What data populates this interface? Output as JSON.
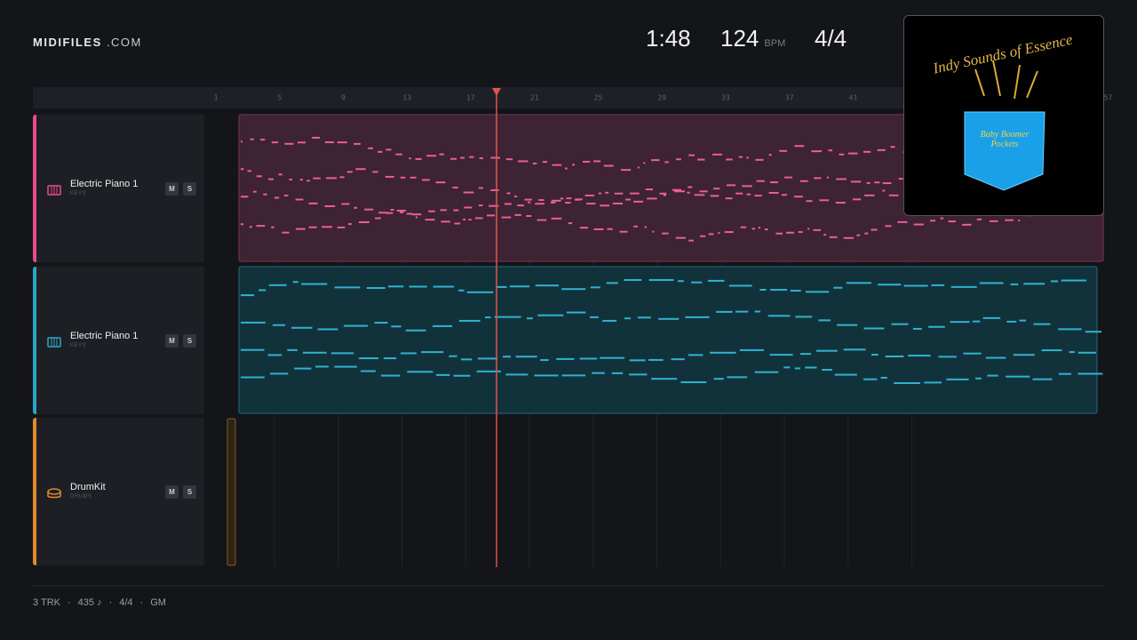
{
  "header": {
    "brand": "MIDIFILES",
    "brand_suffix": ".COM",
    "time": "1:48",
    "tempo": "124",
    "tempo_unit": "BPM",
    "meter": "4/4"
  },
  "ruler": {
    "bars": [
      1,
      5,
      9,
      13,
      17,
      21,
      25,
      29,
      33,
      37,
      41,
      57
    ]
  },
  "tracks": [
    {
      "name": "Electric Piano 1",
      "category": "KEYS",
      "mute": "M",
      "solo": "S"
    },
    {
      "name": "Electric Piano 1",
      "category": "KEYS",
      "mute": "M",
      "solo": "S"
    },
    {
      "name": "DrumKit",
      "category": "DRUMS",
      "mute": "M",
      "solo": "S"
    }
  ],
  "footer": {
    "tracks": "3 TRK",
    "separator": "·",
    "notes": "435 ♪",
    "meter": "4/4",
    "standard": "GM"
  },
  "album_art": {
    "title": "Indy Sounds of Essence",
    "label": "Baby Boomer Pockets"
  }
}
